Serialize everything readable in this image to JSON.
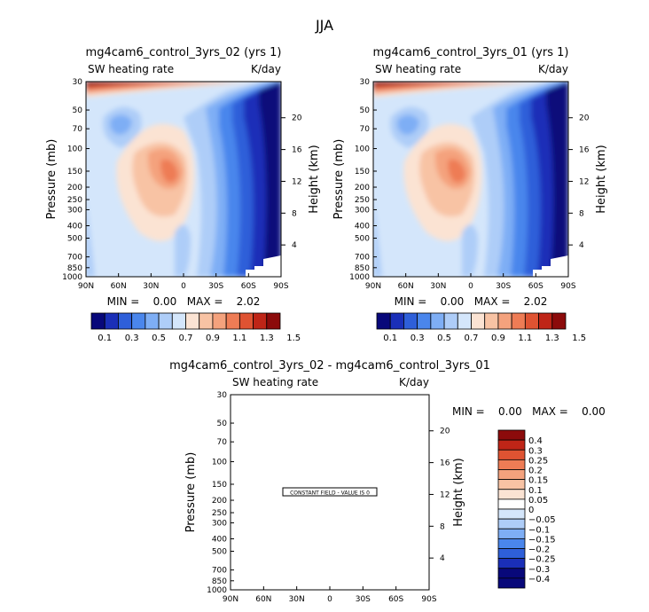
{
  "page_title": "JJA",
  "chart_data": [
    {
      "type": "heatmap",
      "title": "mg4cam6_control_3yrs_02 (yrs 1)",
      "left_string": "SW heating rate",
      "right_string": "K/day",
      "xlabel": "",
      "ylabel": "Pressure (mb)",
      "y2label": "Height (km)",
      "x_ticks": [
        "90N",
        "60N",
        "30N",
        "0",
        "30S",
        "60S",
        "90S"
      ],
      "y_ticks": [
        "30",
        "50",
        "70",
        "100",
        "150",
        "200",
        "250",
        "300",
        "400",
        "500",
        "700",
        "850",
        "1000"
      ],
      "y2_ticks": [
        "20",
        "16",
        "12",
        "8",
        "4"
      ],
      "min_max": "MIN =    0.00   MAX =    2.02",
      "levels": [
        "0.1",
        "0.3",
        "0.5",
        "0.7",
        "0.9",
        "1.1",
        "1.3",
        "1.5"
      ],
      "colors": [
        "#08087a",
        "#1a2fb8",
        "#2e5fd9",
        "#4a86ec",
        "#7eaef5",
        "#aecdf8",
        "#d4e6fb",
        "#fbe3d3",
        "#f8c3a4",
        "#f4a27d",
        "#ee7c55",
        "#df5332",
        "#bf2517",
        "#8c0b0b"
      ]
    },
    {
      "type": "heatmap",
      "title": "mg4cam6_control_3yrs_01 (yrs 1)",
      "left_string": "SW heating rate",
      "right_string": "K/day",
      "xlabel": "",
      "ylabel": "Pressure (mb)",
      "y2label": "Height (km)",
      "x_ticks": [
        "90N",
        "60N",
        "30N",
        "0",
        "30S",
        "60S",
        "90S"
      ],
      "y_ticks": [
        "30",
        "50",
        "70",
        "100",
        "150",
        "200",
        "250",
        "300",
        "400",
        "500",
        "700",
        "850",
        "1000"
      ],
      "y2_ticks": [
        "20",
        "16",
        "12",
        "8",
        "4"
      ],
      "min_max": "MIN =    0.00   MAX =    2.02",
      "levels": [
        "0.1",
        "0.3",
        "0.5",
        "0.7",
        "0.9",
        "1.1",
        "1.3",
        "1.5"
      ],
      "colors": [
        "#08087a",
        "#1a2fb8",
        "#2e5fd9",
        "#4a86ec",
        "#7eaef5",
        "#aecdf8",
        "#d4e6fb",
        "#fbe3d3",
        "#f8c3a4",
        "#f4a27d",
        "#ee7c55",
        "#df5332",
        "#bf2517",
        "#8c0b0b"
      ]
    },
    {
      "type": "heatmap",
      "title": "mg4cam6_control_3yrs_02 - mg4cam6_control_3yrs_01",
      "left_string": "SW heating rate",
      "right_string": "K/day",
      "xlabel": "",
      "ylabel": "Pressure (mb)",
      "y2label": "Height (km)",
      "x_ticks": [
        "90N",
        "60N",
        "30N",
        "0",
        "30S",
        "60S",
        "90S"
      ],
      "y_ticks": [
        "30",
        "50",
        "70",
        "100",
        "150",
        "200",
        "250",
        "300",
        "400",
        "500",
        "700",
        "850",
        "1000"
      ],
      "y2_ticks": [
        "20",
        "16",
        "12",
        "8",
        "4"
      ],
      "min_max": "MIN =    0.00   MAX =    0.00",
      "annotation": "CONSTANT FIELD - VALUE IS 0",
      "levels": [
        "0.4",
        "0.3",
        "0.25",
        "0.2",
        "0.15",
        "0.1",
        "0.05",
        "0",
        "-0.05",
        "-0.1",
        "-0.15",
        "-0.2",
        "-0.25",
        "-0.3",
        "-0.4"
      ],
      "colors": [
        "#8c0b0b",
        "#bf2517",
        "#df5332",
        "#ee7c55",
        "#f4a27d",
        "#f8c3a4",
        "#fbe3d3",
        "#ffffff",
        "#d4e6fb",
        "#aecdf8",
        "#7eaef5",
        "#4a86ec",
        "#2e5fd9",
        "#1a2fb8",
        "#08087a",
        "#08087a"
      ]
    }
  ]
}
